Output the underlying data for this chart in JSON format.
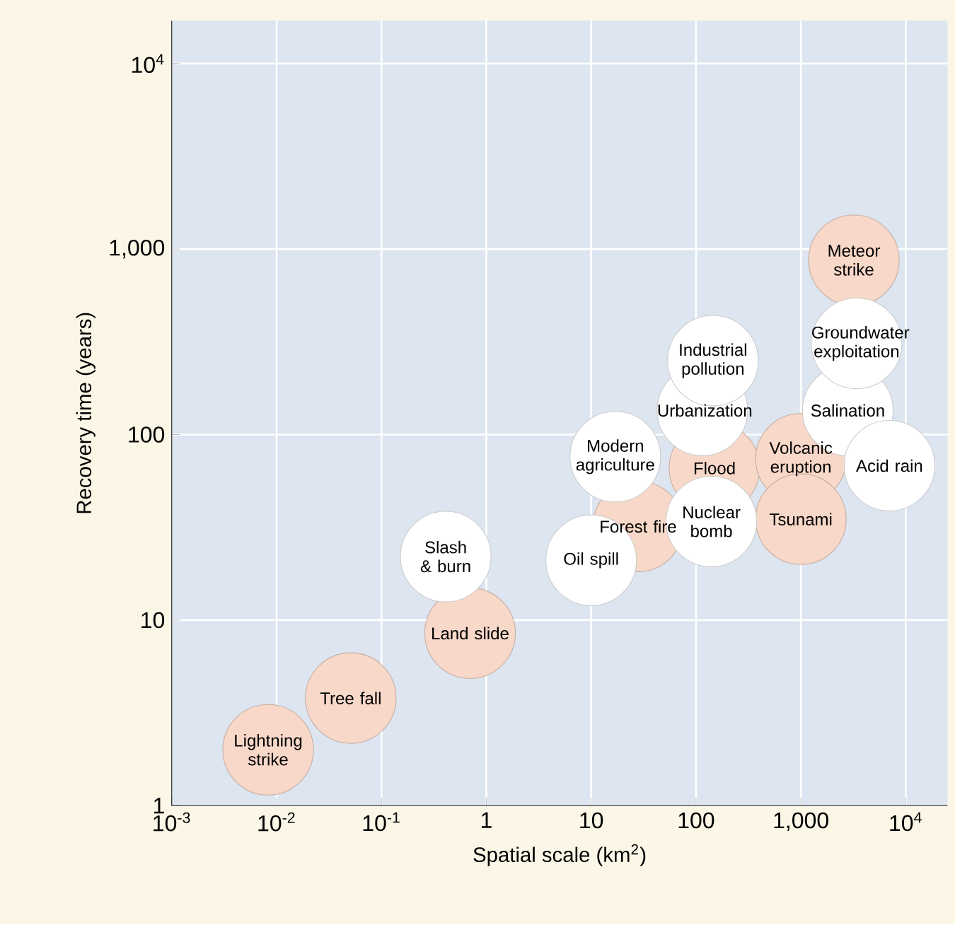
{
  "chart_data": {
    "type": "scatter",
    "xlabel": "Spatial scale (km$^{2}$)",
    "ylabel": "Recovery time (years)",
    "log": "xy",
    "grid": true,
    "xlim": [
      0.001,
      25000
    ],
    "ylim": [
      1,
      17000
    ],
    "xticks": [
      {
        "value": 0.001,
        "label": "10$^{-3}$"
      },
      {
        "value": 0.01,
        "label": "10$^{-2}$"
      },
      {
        "value": 0.1,
        "label": "10$^{-1}$"
      },
      1,
      10,
      100,
      {
        "value": 1000,
        "label": "1,000"
      },
      {
        "value": 10000,
        "label": "10$^{4}$"
      }
    ],
    "yticks": [
      1,
      10,
      100,
      {
        "value": 1000,
        "label": "1,000"
      },
      {
        "value": 10000,
        "label": "10$^{4}$"
      }
    ],
    "series": [
      {
        "color": "#f8d8c8",
        "marker": "circle",
        "x": [
          0.0083,
          0.051,
          0.7,
          28,
          150,
          1000,
          1000,
          3200
        ],
        "values": [
          2.0,
          3.8,
          8.5,
          32,
          66,
          74,
          35,
          870
        ]
      },
      {
        "color": "#ffffff",
        "marker": "circle",
        "x": [
          0.41,
          10,
          17,
          140,
          115,
          145,
          2800,
          3400,
          7000
        ],
        "values": [
          22,
          21,
          76,
          34,
          135,
          250,
          135,
          310,
          68
        ]
      }
    ],
    "annotations": [
      {
        "text": "Lightning strike",
        "x": 0.0083,
        "y": 2.0
      },
      {
        "text": "Tree fall",
        "x": 0.051,
        "y": 3.8
      },
      {
        "text": "Land slide",
        "x": 0.7,
        "y": 8.5
      },
      {
        "text": "Forest fire",
        "x": 28,
        "y": 32
      },
      {
        "text": "Flood",
        "x": 150,
        "y": 66
      },
      {
        "text": "Volcanic eruption",
        "x": 1000,
        "y": 74
      },
      {
        "text": "Tsunami",
        "x": 1000,
        "y": 35
      },
      {
        "text": "Meteor strike",
        "x": 3200,
        "y": 870
      },
      {
        "text": "Slash & burn",
        "x": 0.41,
        "y": 22
      },
      {
        "text": "Oil spill",
        "x": 10,
        "y": 21
      },
      {
        "text": "Modern agriculture",
        "x": 17,
        "y": 76
      },
      {
        "text": "Nuclear bomb",
        "x": 140,
        "y": 34
      },
      {
        "text": "Urbanization",
        "x": 115,
        "y": 135
      },
      {
        "text": "Industrial pollution",
        "x": 145,
        "y": 250
      },
      {
        "text": "Salination",
        "x": 2800,
        "y": 135
      },
      {
        "text": "Groundwater exploitation",
        "x": 3400,
        "y": 310
      },
      {
        "text": "Acid rain",
        "x": 7000,
        "y": 68
      }
    ]
  }
}
